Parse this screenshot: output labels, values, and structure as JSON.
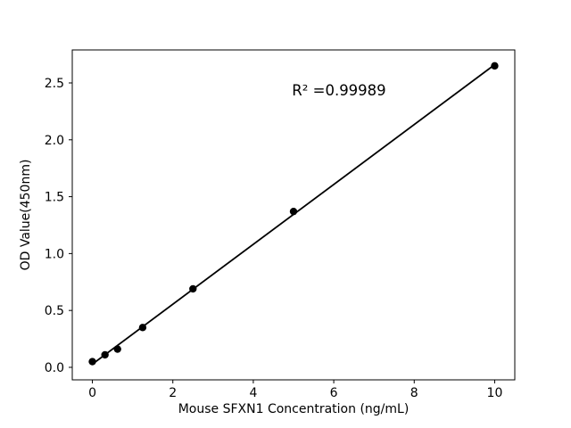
{
  "chart_data": {
    "type": "scatter",
    "x": [
      0,
      0.313,
      0.625,
      1.25,
      2.5,
      5,
      10
    ],
    "y": [
      0.05,
      0.11,
      0.16,
      0.35,
      0.69,
      1.37,
      2.65
    ],
    "title": "",
    "xlabel": "Mouse SFXN1 Concentration (ng/mL)",
    "ylabel": "OD Value(450nm)",
    "annotation": "R² =0.99989",
    "xticks": [
      0,
      2,
      4,
      6,
      8,
      10
    ],
    "yticks": [
      0.0,
      0.5,
      1.0,
      1.5,
      2.0,
      2.5
    ],
    "xlim": [
      -0.5,
      10.5
    ],
    "ylim": [
      -0.11,
      2.79
    ],
    "fit_line": true,
    "legend": "none",
    "grid": false,
    "marker_color": "#000000",
    "line_color": "#000000",
    "axis_color": "#000000",
    "background": "#ffffff"
  }
}
